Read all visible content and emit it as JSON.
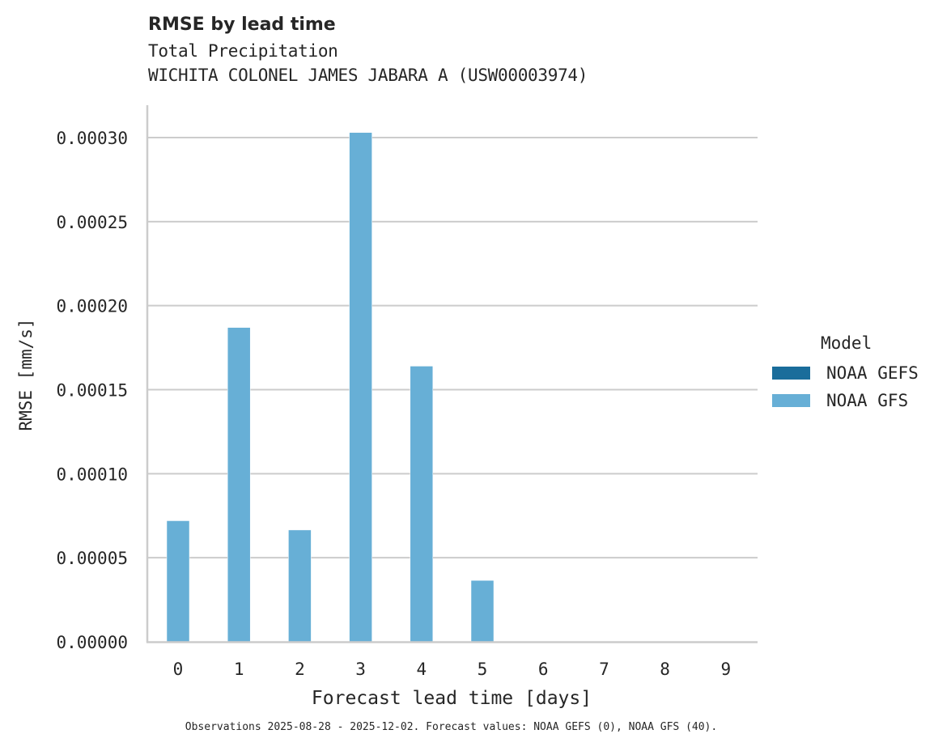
{
  "header": {
    "title": "RMSE by lead time",
    "subtitle_line1": "Total Precipitation",
    "subtitle_line2": "WICHITA COLONEL JAMES JABARA A (USW00003974)"
  },
  "axes": {
    "xlabel": "Forecast lead time [days]",
    "ylabel": "RMSE [mm/s]",
    "xticks": [
      "0",
      "1",
      "2",
      "3",
      "4",
      "5",
      "6",
      "7",
      "8",
      "9"
    ],
    "yticks": [
      "0.00000",
      "0.00005",
      "0.00010",
      "0.00015",
      "0.00020",
      "0.00025",
      "0.00030"
    ]
  },
  "legend": {
    "title": "Model",
    "items": [
      {
        "label": "NOAA GEFS",
        "color": "#1a6d9b"
      },
      {
        "label": "NOAA GFS",
        "color": "#67afd6"
      }
    ]
  },
  "footnote": "Observations 2025-08-28 - 2025-12-02. Forecast values: NOAA GEFS (0), NOAA GFS (40).",
  "colors": {
    "gefs": "#1a6d9b",
    "gfs": "#67afd6",
    "grid": "#cccccc",
    "spine": "#cccccc"
  },
  "chart_data": {
    "type": "bar",
    "title": "RMSE by lead time",
    "subtitle": "Total Precipitation — WICHITA COLONEL JAMES JABARA A (USW00003974)",
    "xlabel": "Forecast lead time [days]",
    "ylabel": "RMSE [mm/s]",
    "categories": [
      "0",
      "1",
      "2",
      "3",
      "4",
      "5",
      "6",
      "7",
      "8",
      "9"
    ],
    "series": [
      {
        "name": "NOAA GEFS",
        "color": "#1a6d9b",
        "values": [
          null,
          null,
          null,
          null,
          null,
          null,
          null,
          null,
          null,
          null
        ]
      },
      {
        "name": "NOAA GFS",
        "color": "#67afd6",
        "values": [
          7.2e-05,
          0.000187,
          6.65e-05,
          0.000303,
          0.000164,
          3.65e-05,
          null,
          null,
          null,
          null
        ]
      }
    ],
    "ylim": [
      0,
      0.00032
    ],
    "yticks": [
      0,
      5e-05,
      0.0001,
      0.00015,
      0.0002,
      0.00025,
      0.0003
    ],
    "grid": "horizontal",
    "legend_position": "right",
    "legend_title": "Model"
  }
}
